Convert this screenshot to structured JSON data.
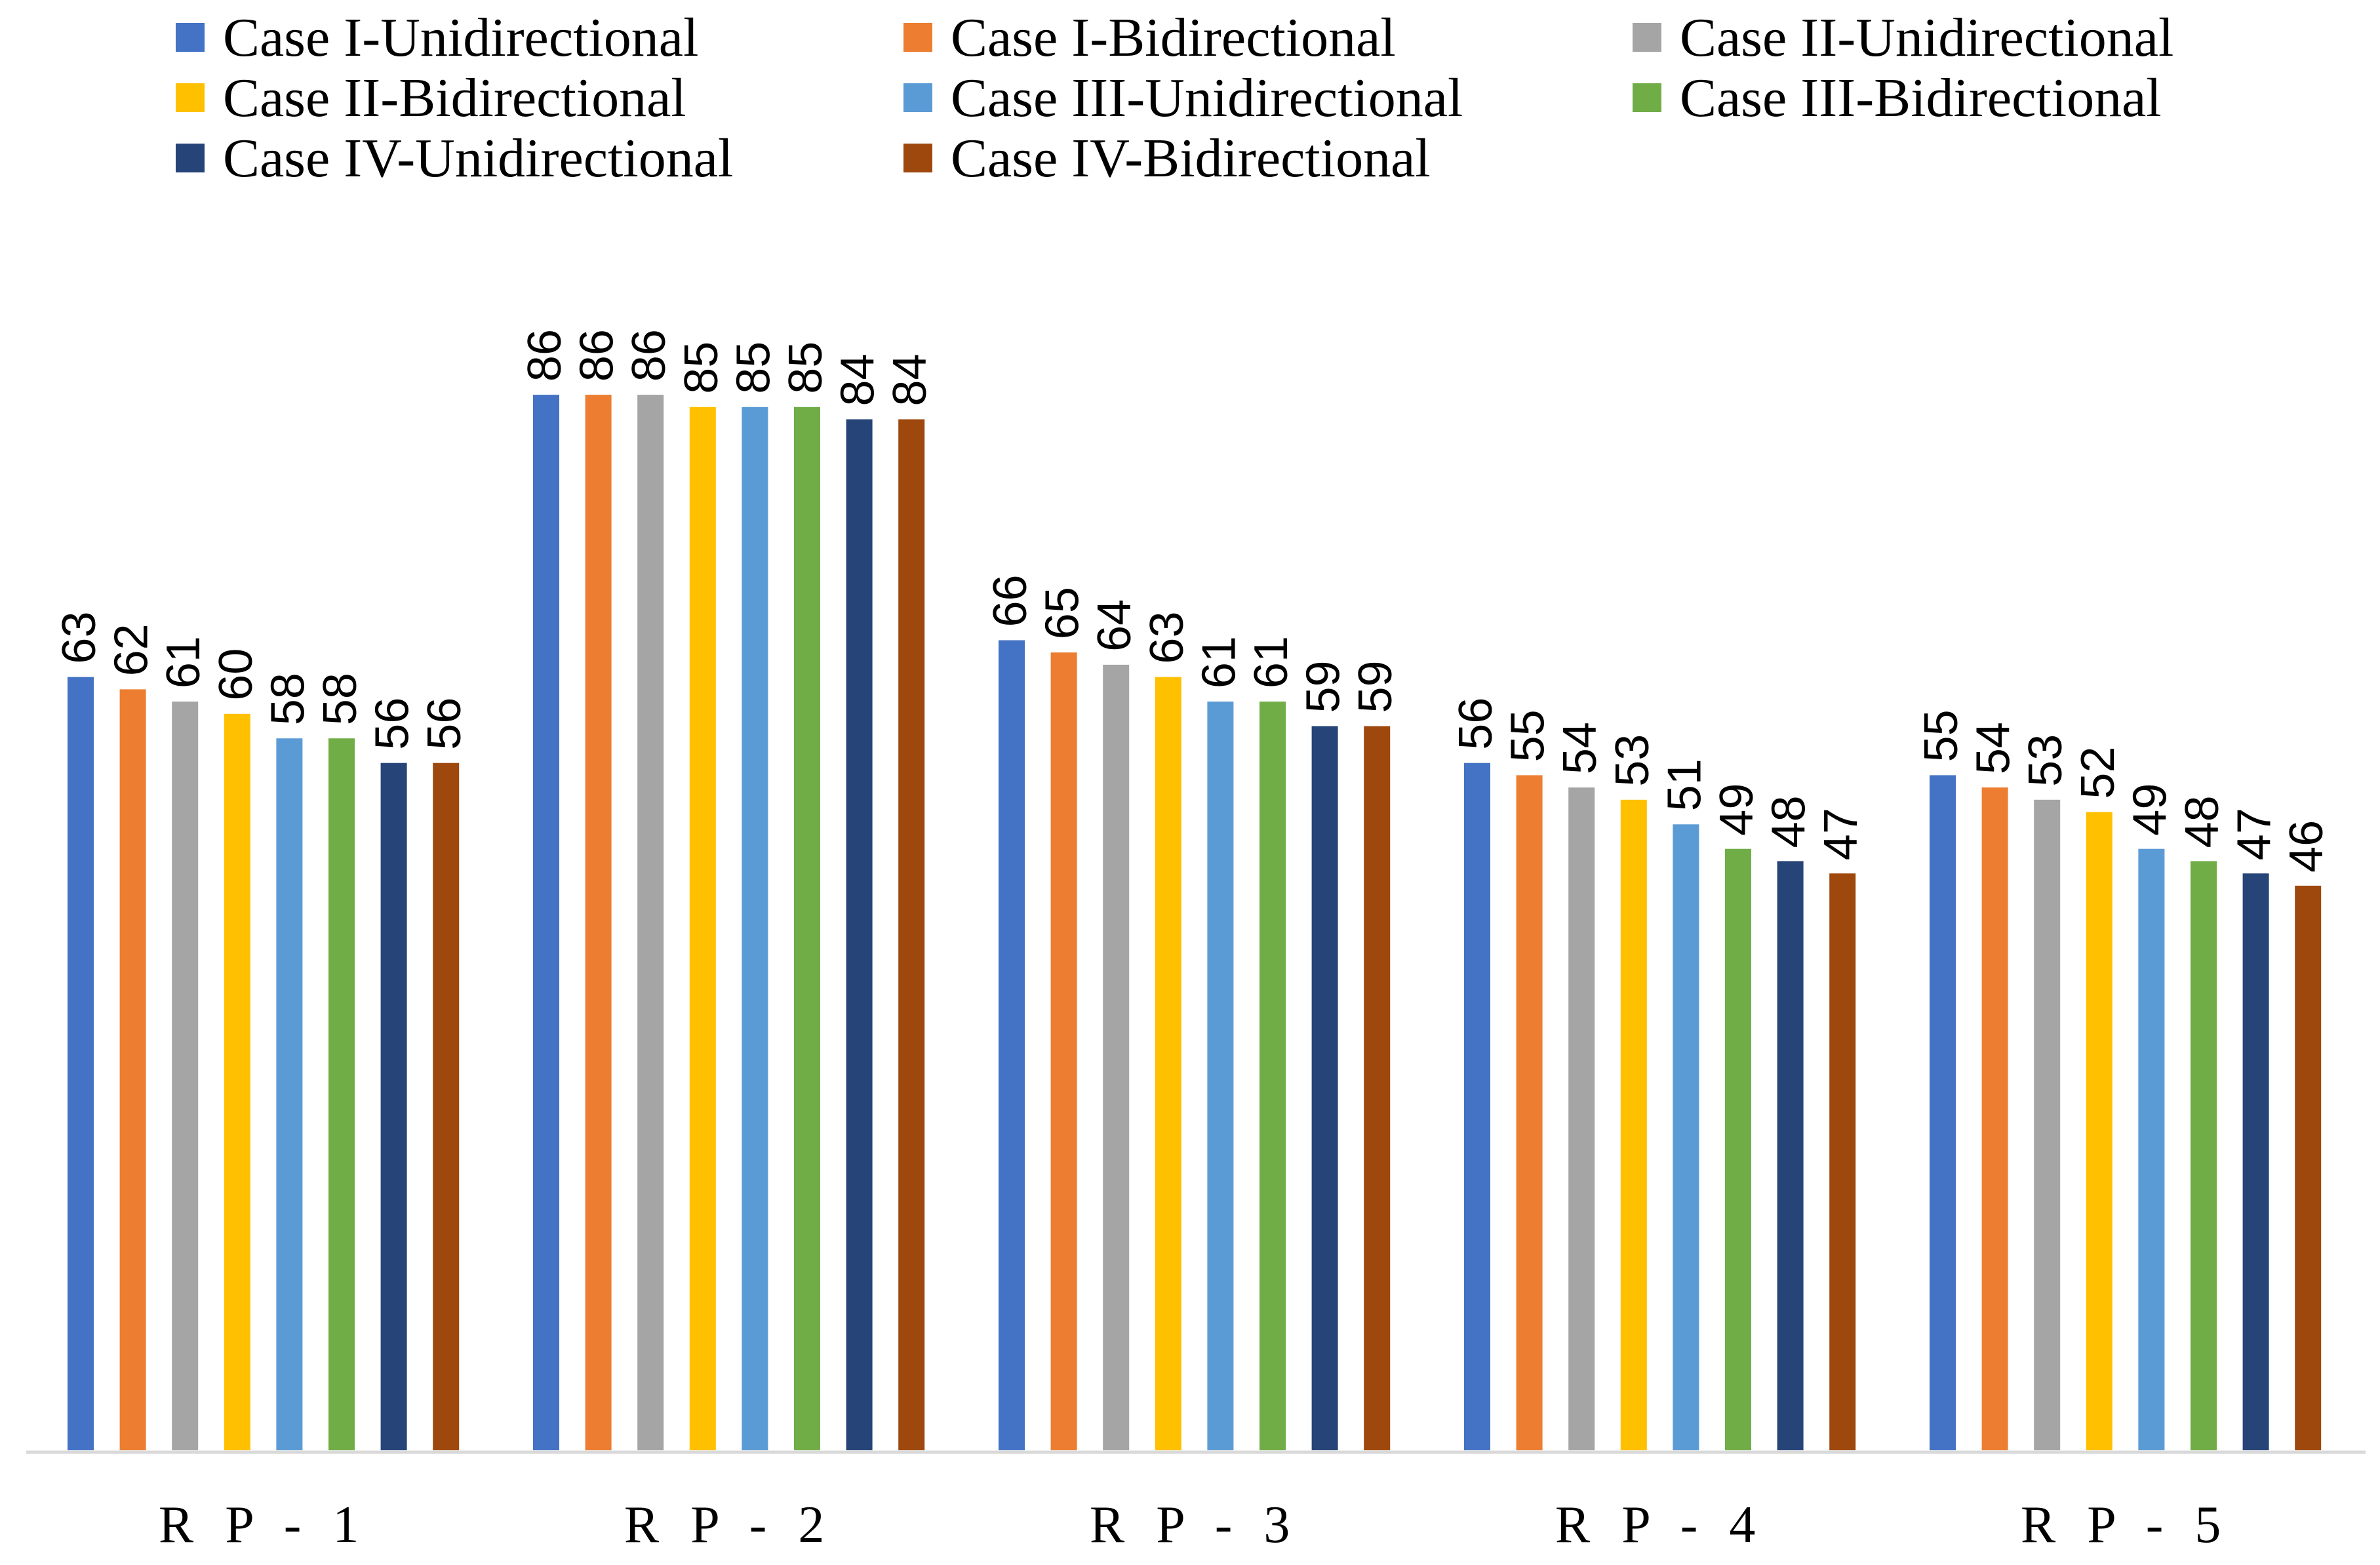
{
  "chart_data": {
    "type": "bar",
    "title": "",
    "xlabel": "",
    "ylabel": "",
    "ylim": [
      0,
      90
    ],
    "grid": false,
    "legend_position": "top",
    "categories": [
      "R P - 1",
      "R P - 2",
      "R P - 3",
      "R P - 4",
      "R P - 5"
    ],
    "series": [
      {
        "name": "Case I-Unidirectional",
        "color": "#4472C4",
        "values": [
          63,
          86,
          66,
          56,
          55
        ]
      },
      {
        "name": "Case I-Bidirectional",
        "color": "#ED7D31",
        "values": [
          62,
          86,
          65,
          55,
          54
        ]
      },
      {
        "name": "Case II-Unidirectional",
        "color": "#A5A5A5",
        "values": [
          61,
          86,
          64,
          54,
          53
        ]
      },
      {
        "name": "Case II-Bidirectional",
        "color": "#FFC000",
        "values": [
          60,
          85,
          63,
          53,
          52
        ]
      },
      {
        "name": "Case III-Unidirectional",
        "color": "#5B9BD5",
        "values": [
          58,
          85,
          61,
          51,
          49
        ]
      },
      {
        "name": "Case III-Bidirectional",
        "color": "#70AD47",
        "values": [
          58,
          85,
          61,
          49,
          48
        ]
      },
      {
        "name": "Case IV-Unidirectional",
        "color": "#264478",
        "values": [
          56,
          84,
          59,
          48,
          47
        ]
      },
      {
        "name": "Case IV-Bidirectional",
        "color": "#9E480E",
        "values": [
          56,
          84,
          59,
          47,
          46
        ]
      }
    ]
  }
}
